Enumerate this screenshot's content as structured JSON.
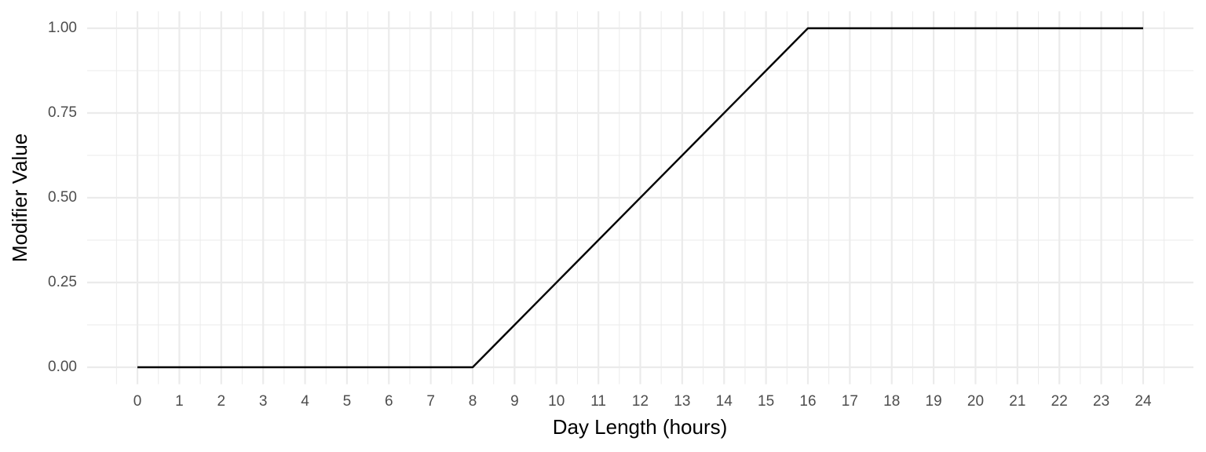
{
  "chart_data": {
    "type": "line",
    "x_label": "Day Length (hours)",
    "y_label": "Modifier Value",
    "x": [
      0,
      8,
      16,
      24
    ],
    "values": [
      0,
      0,
      1,
      1
    ],
    "color": "#000000",
    "xlim": [
      -1.2,
      25.2
    ],
    "xticks": [
      0,
      1,
      2,
      3,
      4,
      5,
      6,
      7,
      8,
      9,
      10,
      11,
      12,
      13,
      14,
      15,
      16,
      17,
      18,
      19,
      20,
      21,
      22,
      23,
      24
    ],
    "ylim": [
      -0.05,
      1.05
    ],
    "yticks": [
      {
        "value": 0,
        "label": "0.00"
      },
      {
        "value": 0.25,
        "label": "0.25"
      },
      {
        "value": 0.5,
        "label": "0.50"
      },
      {
        "value": 0.75,
        "label": "0.75"
      },
      {
        "value": 1,
        "label": "1.00"
      }
    ],
    "grid": true
  }
}
